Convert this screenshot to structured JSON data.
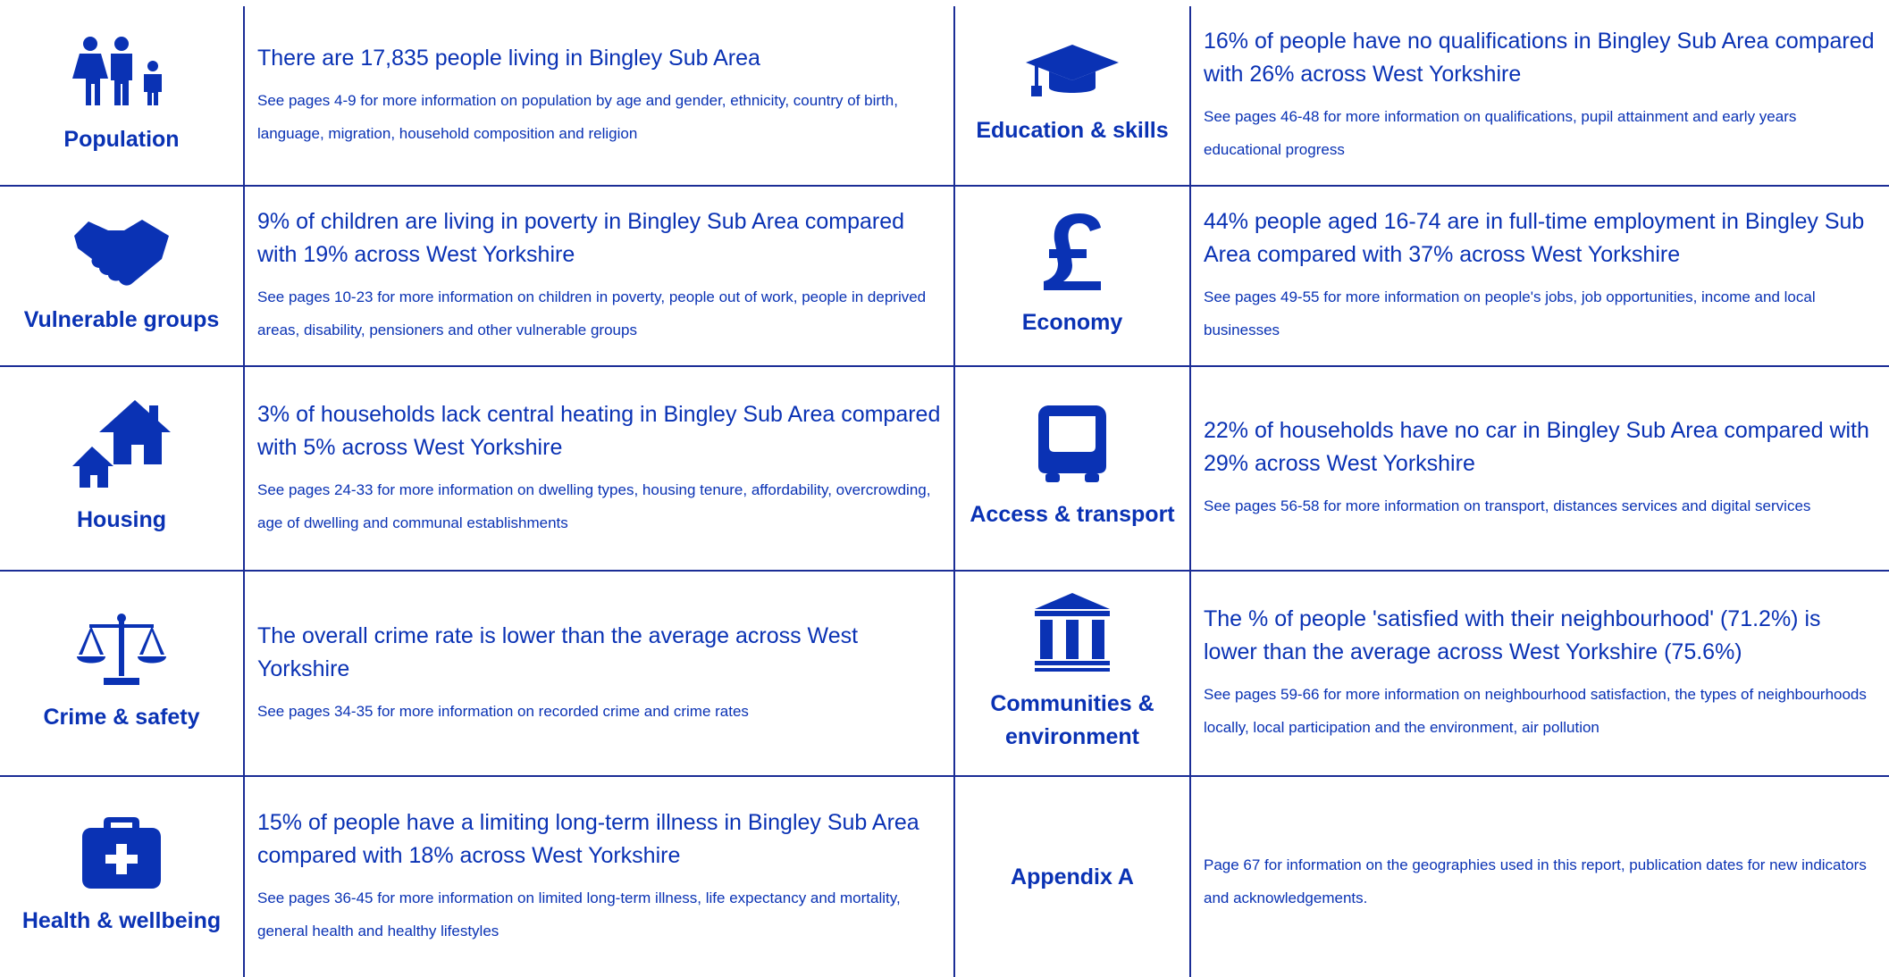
{
  "rows": [
    {
      "left": {
        "label": "Population",
        "headline": "There are 17,835 people living in Bingley Sub Area",
        "detail": "See pages 4-9 for more information on population by age and gender, ethnicity, country of birth, language, migration, household composition and religion"
      },
      "right": {
        "label": "Education & skills",
        "headline": "16% of people have no qualifications in Bingley Sub Area compared with 26% across West Yorkshire",
        "detail": "See pages 46-48 for more information on qualifications, pupil attainment and early years educational progress"
      }
    },
    {
      "left": {
        "label": "Vulnerable groups",
        "headline": "9% of children are living in poverty in Bingley Sub Area compared with 19% across West Yorkshire",
        "detail": "See pages 10-23 for more information on children in poverty, people out of work, people in deprived areas, disability, pensioners and other vulnerable groups"
      },
      "right": {
        "label": "Economy",
        "headline": "44% people aged 16-74 are in full-time employment in Bingley Sub Area compared with 37% across West Yorkshire",
        "detail": "See pages 49-55 for more information on people's jobs, job opportunities, income and local businesses"
      }
    },
    {
      "left": {
        "label": "Housing",
        "headline": "3% of households lack central heating in Bingley Sub Area compared with 5% across West Yorkshire",
        "detail": "See pages 24-33 for more information on dwelling types, housing tenure, affordability, overcrowding, age of dwelling and communal establishments"
      },
      "right": {
        "label": "Access & transport",
        "headline": "22% of households have no car in Bingley Sub Area compared with 29% across West Yorkshire",
        "detail": "See pages 56-58 for more information on transport, distances services and digital services"
      }
    },
    {
      "left": {
        "label": "Crime & safety",
        "headline": "The overall crime rate is lower than the average across West Yorkshire",
        "detail": "See pages 34-35 for more information on recorded crime and crime rates"
      },
      "right": {
        "label": "Communities & environment",
        "headline": "The % of people 'satisfied with their neighbourhood' (71.2%) is lower than the average across West Yorkshire (75.6%)",
        "detail": "See pages 59-66 for more information on neighbourhood satisfaction, the types of neighbourhoods locally, local participation and the environment, air pollution"
      }
    },
    {
      "left": {
        "label": "Health & wellbeing",
        "headline": "15% of people have a limiting long-term illness in Bingley Sub Area compared with 18% across West Yorkshire",
        "detail": "See pages 36-45 for more information on limited long-term illness, life expectancy and mortality, general health and healthy lifestyles"
      },
      "right": {
        "label": "Appendix A",
        "detail": "Page 67 for information on the geographies used in this report, publication dates for new indicators and acknowledgements."
      }
    }
  ]
}
